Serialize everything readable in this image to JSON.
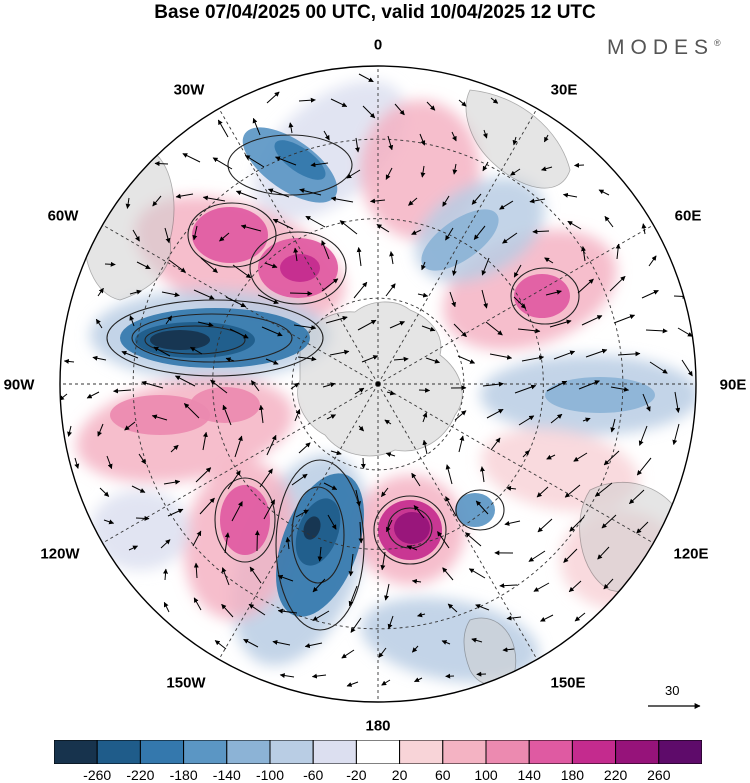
{
  "title": "Base 07/04/2025 00 UTC, valid 10/04/2025 12 UTC",
  "brand": "MODES",
  "brand_mark": "®",
  "longitude_labels": {
    "top": "0",
    "top_right": "30E",
    "upper_right": "60E",
    "right": "90E",
    "lower_right": "120E",
    "bottom_right": "150E",
    "bottom": "180",
    "bottom_left": "150W",
    "lower_left": "120W",
    "left": "90W",
    "upper_left": "60W",
    "top_left": "30W"
  },
  "vector_scale": {
    "label": "30"
  },
  "colorbar": {
    "ticks": [
      "-260",
      "-220",
      "-180",
      "-140",
      "-100",
      "-60",
      "-20",
      "20",
      "60",
      "100",
      "140",
      "180",
      "220",
      "260"
    ],
    "colors": [
      "#17334d",
      "#1f5c8a",
      "#3478ad",
      "#5b96c4",
      "#8cb3d6",
      "#b9cde4",
      "#dcdff0",
      "#ffffff",
      "#f8d4d8",
      "#f4b3c3",
      "#ec8ab0",
      "#df5aa2",
      "#c42b8e",
      "#96137a",
      "#5e0b6a"
    ]
  },
  "colors": {
    "land": "#d8d8d8",
    "coast": "#777777",
    "grid": "#333333",
    "contour": "#222222"
  }
}
